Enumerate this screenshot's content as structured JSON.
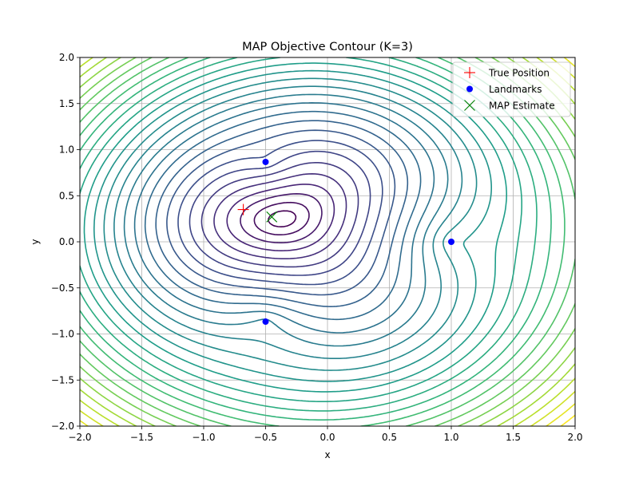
{
  "chart_data": {
    "type": "contour",
    "title": "MAP Objective Contour (K=3)",
    "xlabel": "x",
    "ylabel": "y",
    "xlim": [
      -2.0,
      2.0
    ],
    "ylim": [
      -2.0,
      2.0
    ],
    "xticks": [
      -2.0,
      -1.5,
      -1.0,
      -0.5,
      0.0,
      0.5,
      1.0,
      1.5,
      2.0
    ],
    "yticks": [
      -2.0,
      -1.5,
      -1.0,
      -0.5,
      0.0,
      0.5,
      1.0,
      1.5,
      2.0
    ],
    "xtick_labels": [
      "−2.0",
      "−1.5",
      "−1.0",
      "−0.5",
      "0.0",
      "0.5",
      "1.0",
      "1.5",
      "2.0"
    ],
    "ytick_labels": [
      "−2.0",
      "−1.5",
      "−1.0",
      "−0.5",
      "0.0",
      "0.5",
      "1.0",
      "1.5",
      "2.0"
    ],
    "grid": true,
    "colormap": "viridis",
    "contour_levels": 30,
    "legend_position": "top-right",
    "series": [
      {
        "name": "True Position",
        "marker": "plus",
        "color": "#ff0000",
        "points": [
          [
            -0.68,
            0.35
          ]
        ]
      },
      {
        "name": "Landmarks",
        "marker": "circle",
        "color": "#0000ff",
        "points": [
          [
            -0.5,
            0.866
          ],
          [
            1.0,
            0.0
          ],
          [
            -0.5,
            -0.866
          ]
        ]
      },
      {
        "name": "MAP Estimate",
        "marker": "x",
        "color": "#008000",
        "points": [
          [
            -0.45,
            0.27
          ]
        ]
      }
    ]
  }
}
